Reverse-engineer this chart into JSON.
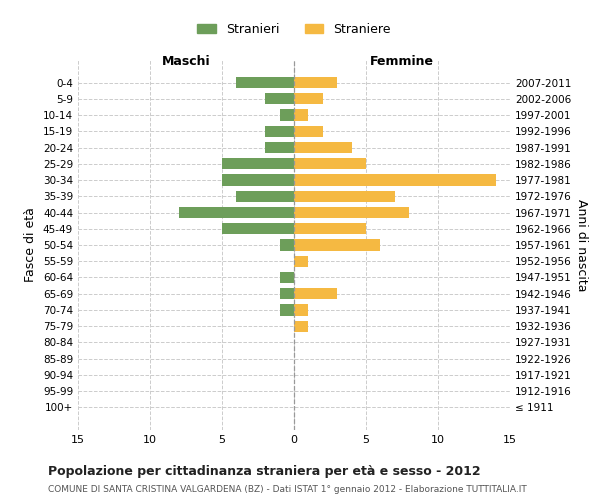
{
  "age_groups": [
    "100+",
    "95-99",
    "90-94",
    "85-89",
    "80-84",
    "75-79",
    "70-74",
    "65-69",
    "60-64",
    "55-59",
    "50-54",
    "45-49",
    "40-44",
    "35-39",
    "30-34",
    "25-29",
    "20-24",
    "15-19",
    "10-14",
    "5-9",
    "0-4"
  ],
  "birth_years": [
    "≤ 1911",
    "1912-1916",
    "1917-1921",
    "1922-1926",
    "1927-1931",
    "1932-1936",
    "1937-1941",
    "1942-1946",
    "1947-1951",
    "1952-1956",
    "1957-1961",
    "1962-1966",
    "1967-1971",
    "1972-1976",
    "1977-1981",
    "1982-1986",
    "1987-1991",
    "1992-1996",
    "1997-2001",
    "2002-2006",
    "2007-2011"
  ],
  "males": [
    0,
    0,
    0,
    0,
    0,
    0,
    1,
    1,
    1,
    0,
    1,
    5,
    8,
    4,
    5,
    5,
    2,
    2,
    1,
    2,
    4
  ],
  "females": [
    0,
    0,
    0,
    0,
    0,
    1,
    1,
    3,
    0,
    1,
    6,
    5,
    8,
    7,
    14,
    5,
    4,
    2,
    1,
    2,
    3
  ],
  "male_color": "#6d9e5a",
  "female_color": "#f5b942",
  "title": "Popolazione per cittadinanza straniera per età e sesso - 2012",
  "subtitle": "COMUNE DI SANTA CRISTINA VALGARDENA (BZ) - Dati ISTAT 1° gennaio 2012 - Elaborazione TUTTITALIA.IT",
  "xlabel_left": "Maschi",
  "xlabel_right": "Femmine",
  "ylabel_left": "Fasce di età",
  "ylabel_right": "Anni di nascita",
  "legend_male": "Stranieri",
  "legend_female": "Straniere",
  "xlim": 15,
  "background_color": "#ffffff",
  "grid_color": "#cccccc"
}
